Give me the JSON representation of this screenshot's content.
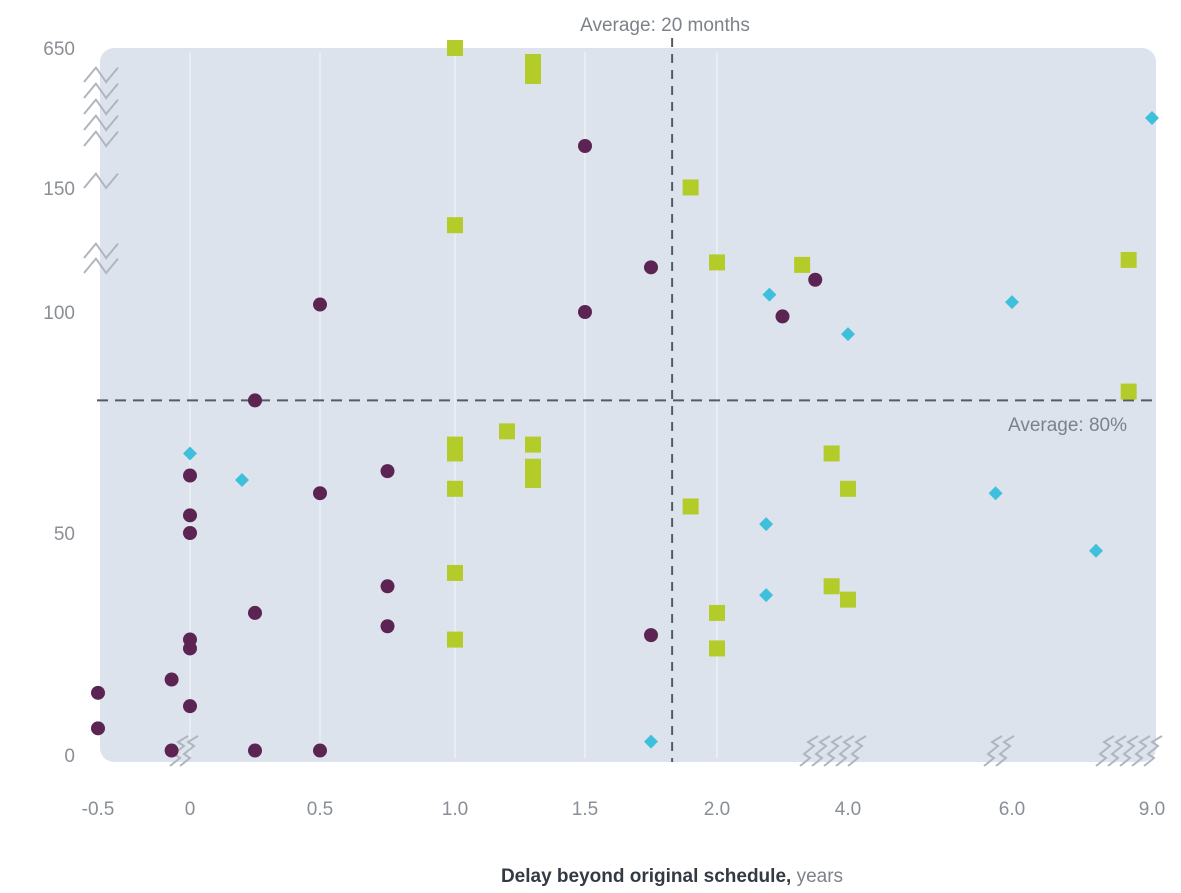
{
  "chart_data": {
    "type": "scatter",
    "title": "",
    "xlabel_bold": "Delay beyond original schedule,",
    "xlabel_unit": " years",
    "ylabel": "",
    "x_ticks": [
      "-0.5",
      "0",
      "0.5",
      "1.0",
      "1.5",
      "2.0",
      "4.0",
      "6.0",
      "9.0"
    ],
    "y_ticks": [
      "0",
      "50",
      "100",
      "150",
      "650"
    ],
    "axis_breaks": "x axis broken between 0 and -0.5, after 2.0, 4.0, 6.0, 9.0; y axis broken between 100 and 150 and between 150 and 650",
    "annotations": {
      "avg_x": "Average: 20 months",
      "avg_y": "Average: 80%"
    },
    "average_lines": {
      "x": 1.83,
      "y": 80
    },
    "colors": {
      "plot_background": "#dde3ec",
      "circle": "#5b2453",
      "square": "#b3cc2a",
      "diamond": "#3ec0dc",
      "reference_line": "#555b66"
    },
    "series": [
      {
        "marker": "circle",
        "points": [
          [
            -0.5,
            14
          ],
          [
            -0.5,
            6
          ],
          [
            -0.1,
            17
          ],
          [
            -0.1,
            1
          ],
          [
            0,
            63
          ],
          [
            0,
            54
          ],
          [
            0,
            50
          ],
          [
            0,
            26
          ],
          [
            0,
            24
          ],
          [
            0,
            11
          ],
          [
            0.25,
            80
          ],
          [
            0.25,
            32
          ],
          [
            0.25,
            1
          ],
          [
            0.5,
            103
          ],
          [
            0.5,
            59
          ],
          [
            0.5,
            1
          ],
          [
            0.75,
            64
          ],
          [
            0.75,
            38
          ],
          [
            0.75,
            29
          ],
          [
            1.5,
            300
          ],
          [
            1.5,
            100
          ],
          [
            1.75,
            118
          ],
          [
            1.75,
            27
          ],
          [
            3.0,
            99
          ],
          [
            3.5,
            113
          ]
        ]
      },
      {
        "marker": "square",
        "points": [
          [
            1.0,
            650
          ],
          [
            1.0,
            135
          ],
          [
            1.0,
            70
          ],
          [
            1.0,
            68
          ],
          [
            1.0,
            60
          ],
          [
            1.0,
            41
          ],
          [
            1.0,
            26
          ],
          [
            1.2,
            73
          ],
          [
            1.3,
            600
          ],
          [
            1.3,
            550
          ],
          [
            1.3,
            70
          ],
          [
            1.3,
            65
          ],
          [
            1.3,
            62
          ],
          [
            1.9,
            152
          ],
          [
            1.9,
            56
          ],
          [
            2.0,
            120
          ],
          [
            2.0,
            32
          ],
          [
            2.0,
            24
          ],
          [
            3.3,
            119
          ],
          [
            3.75,
            68
          ],
          [
            3.75,
            38
          ],
          [
            4.0,
            60
          ],
          [
            4.0,
            35
          ],
          [
            8.5,
            121
          ],
          [
            8.5,
            82
          ]
        ]
      },
      {
        "marker": "diamond",
        "points": [
          [
            0,
            68
          ],
          [
            0.2,
            62
          ],
          [
            1.75,
            3
          ],
          [
            2.75,
            52
          ],
          [
            2.75,
            36
          ],
          [
            2.8,
            107
          ],
          [
            4.0,
            95
          ],
          [
            5.8,
            59
          ],
          [
            6.0,
            104
          ],
          [
            7.8,
            46
          ],
          [
            9.0,
            400
          ]
        ]
      }
    ]
  }
}
